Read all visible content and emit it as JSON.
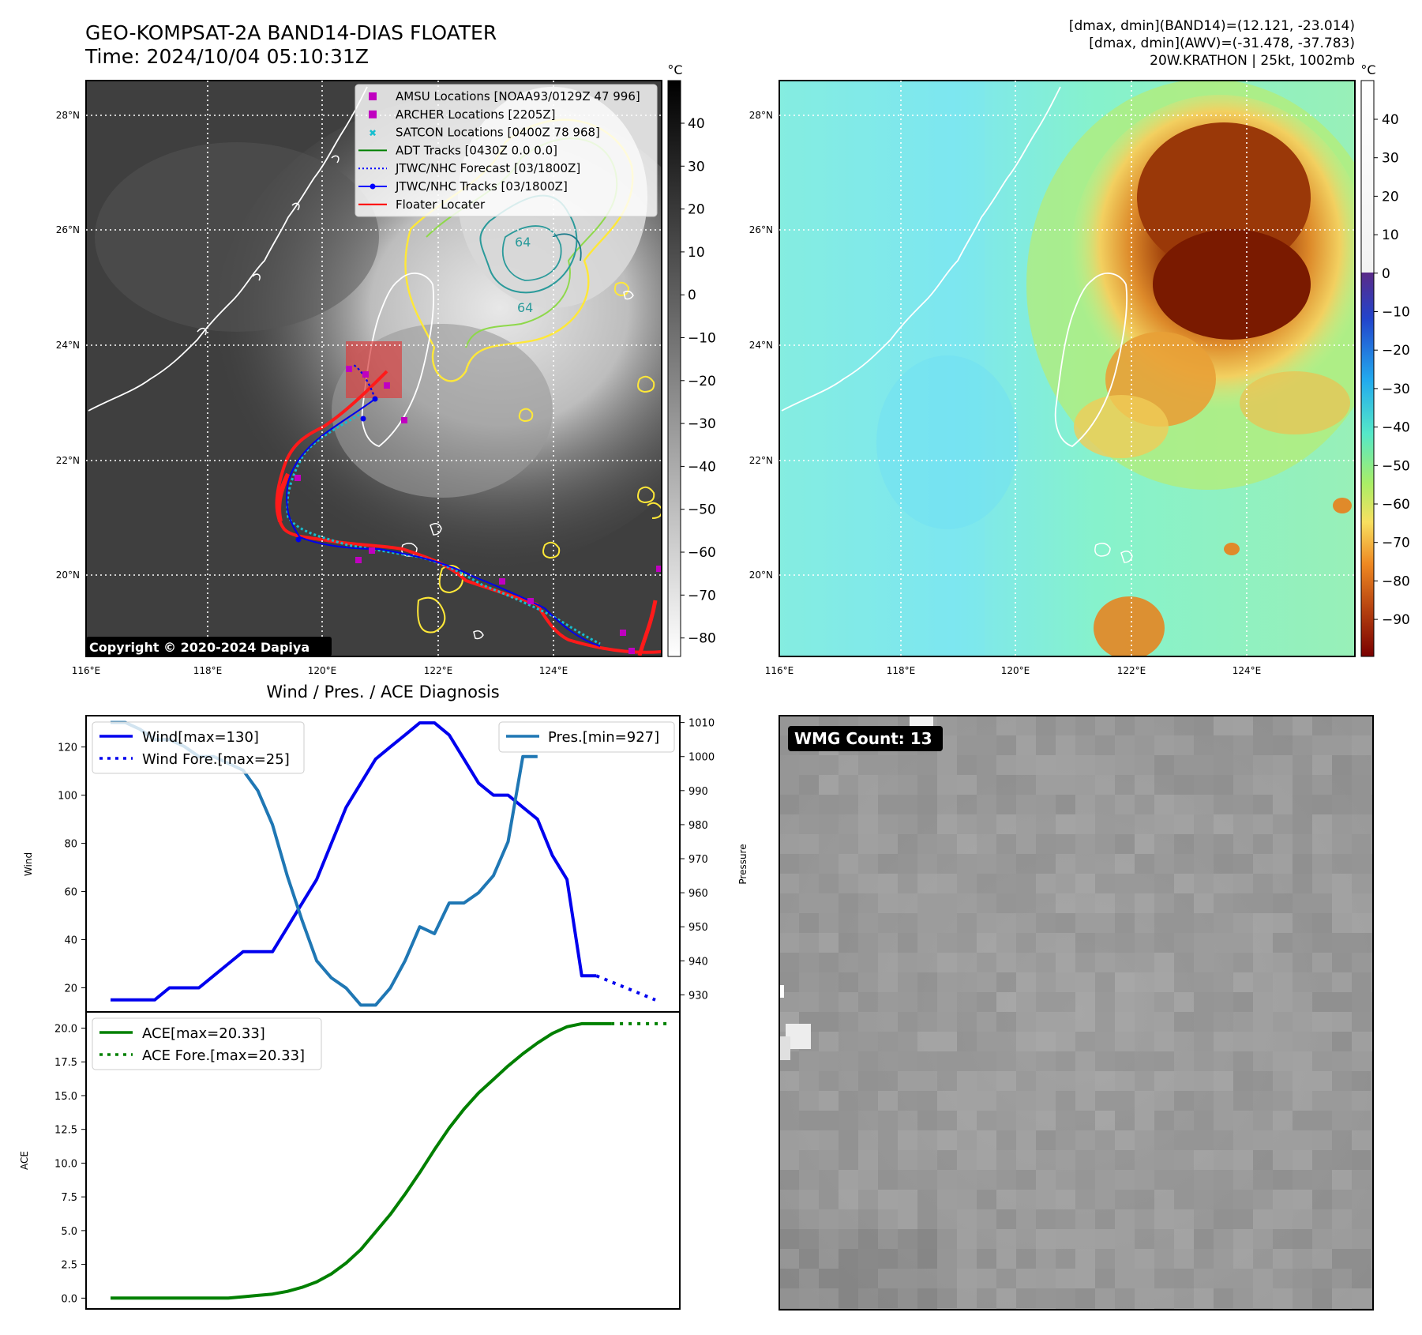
{
  "header": {
    "title_line1": "GEO-KOMPSAT-2A BAND14-DIAS FLOATER",
    "title_line2": "Time: 2024/10/04 05:10:31Z",
    "info_line1": "[dmax, dmin](BAND14)=(12.121, -23.014)",
    "info_line2": "[dmax, dmin](AWV)=(-31.478, -37.783)",
    "info_line3": "20W.KRATHON | 25kt, 1002mb"
  },
  "map_axes": {
    "lon_ticks": [
      "116°E",
      "118°E",
      "120°E",
      "122°E",
      "124°E"
    ],
    "lat_ticks": [
      "28°N",
      "26°N",
      "24°N",
      "22°N",
      "20°N"
    ],
    "colorbar_unit": "°C"
  },
  "left_map": {
    "colorbar_ticks": [
      "40",
      "30",
      "20",
      "10",
      "0",
      "−10",
      "−20",
      "−30",
      "−40",
      "−50",
      "−60",
      "−70",
      "−80"
    ],
    "contour_labels": [
      "64",
      "64"
    ],
    "copyright": "Copyright © 2020-2024 Dapiya",
    "legend": [
      {
        "label": "AMSU Locations [NOAA93/0129Z 47 996]",
        "color": "#c000c0",
        "marker": "square"
      },
      {
        "label": "ARCHER Locations [2205Z]",
        "color": "#c000c0",
        "marker": "square"
      },
      {
        "label": "SATCON Locations [0400Z 78 968]",
        "color": "#17becf",
        "marker": "x"
      },
      {
        "label": "ADT Tracks [0430Z 0.0 0.0]",
        "color": "#008000",
        "marker": "line"
      },
      {
        "label": "JTWC/NHC Forecast [03/1800Z]",
        "color": "#0000ff",
        "marker": "dotted"
      },
      {
        "label": "JTWC/NHC Tracks [03/1800Z]",
        "color": "#0000ff",
        "marker": "line-dot"
      },
      {
        "label": "Floater Locater",
        "color": "#ff0000",
        "marker": "line"
      }
    ]
  },
  "right_map": {
    "colorbar_ticks": [
      "40",
      "30",
      "20",
      "10",
      "0",
      "−10",
      "−20",
      "−30",
      "−40",
      "−50",
      "−60",
      "−70",
      "−80",
      "−90"
    ]
  },
  "wind_panel": {
    "title": "Wind / Pres. / ACE Diagnosis",
    "ylabel_left": "Wind",
    "ylabel_right": "Pressure",
    "wind_ticks": [
      "120",
      "100",
      "80",
      "60",
      "40",
      "20"
    ],
    "pres_ticks": [
      "1010",
      "1000",
      "990",
      "980",
      "970",
      "960",
      "950",
      "940",
      "930"
    ],
    "legend_left": [
      {
        "label": "Wind[max=130]",
        "style": "solid",
        "color": "#0000ee"
      },
      {
        "label": "Wind Fore.[max=25]",
        "style": "dotted",
        "color": "#0000ee"
      }
    ],
    "legend_right": [
      {
        "label": "Pres.[min=927]",
        "style": "solid",
        "color": "#1f77b4"
      }
    ]
  },
  "ace_panel": {
    "ylabel": "ACE",
    "ticks": [
      "20.0",
      "17.5",
      "15.0",
      "12.5",
      "10.0",
      "7.5",
      "5.0",
      "2.5",
      "0.0"
    ],
    "legend": [
      {
        "label": "ACE[max=20.33]",
        "style": "solid",
        "color": "#008000"
      },
      {
        "label": "ACE Fore.[max=20.33]",
        "style": "dotted",
        "color": "#008000"
      }
    ]
  },
  "wmg_panel": {
    "badge": "WMG Count: 13"
  },
  "chart_data": [
    {
      "type": "line",
      "title": "Wind / Pres. / ACE Diagnosis",
      "ylabel": "Wind",
      "ylim": [
        10,
        133
      ],
      "series": [
        {
          "name": "Wind[max=130]",
          "values": [
            15,
            15,
            15,
            15,
            20,
            20,
            20,
            25,
            30,
            35,
            35,
            35,
            45,
            55,
            65,
            80,
            95,
            105,
            115,
            120,
            125,
            130,
            130,
            125,
            115,
            105,
            100,
            100,
            95,
            90,
            75,
            65,
            25,
            25
          ]
        },
        {
          "name": "Wind Fore.[max=25]",
          "values": [
            25,
            22.5,
            20,
            17.5,
            15
          ],
          "offset": 33
        }
      ]
    },
    {
      "type": "line",
      "ylabel": "Pressure",
      "ylim": [
        925,
        1012
      ],
      "series": [
        {
          "name": "Pres.[min=927]",
          "values": [
            1010,
            1010,
            1008,
            1005,
            1005,
            1003,
            1000,
            1000,
            998,
            996,
            990,
            980,
            965,
            952,
            940,
            935,
            932,
            927,
            927,
            932,
            940,
            950,
            948,
            957,
            957,
            960,
            965,
            975,
            1000,
            1000
          ]
        }
      ]
    },
    {
      "type": "line",
      "ylabel": "ACE",
      "ylim": [
        -0.8,
        21.2
      ],
      "series": [
        {
          "name": "ACE[max=20.33]",
          "values": [
            0,
            0,
            0,
            0,
            0,
            0,
            0,
            0,
            0,
            0.1,
            0.2,
            0.3,
            0.5,
            0.8,
            1.2,
            1.8,
            2.6,
            3.6,
            4.9,
            6.2,
            7.7,
            9.3,
            11,
            12.6,
            14,
            15.2,
            16.2,
            17.2,
            18.1,
            18.9,
            19.6,
            20.1,
            20.33,
            20.33,
            20.33
          ]
        },
        {
          "name": "ACE Fore.[max=20.33]",
          "values": [
            20.33,
            20.33,
            20.33,
            20.33,
            20.33
          ],
          "offset": 34
        }
      ]
    }
  ]
}
